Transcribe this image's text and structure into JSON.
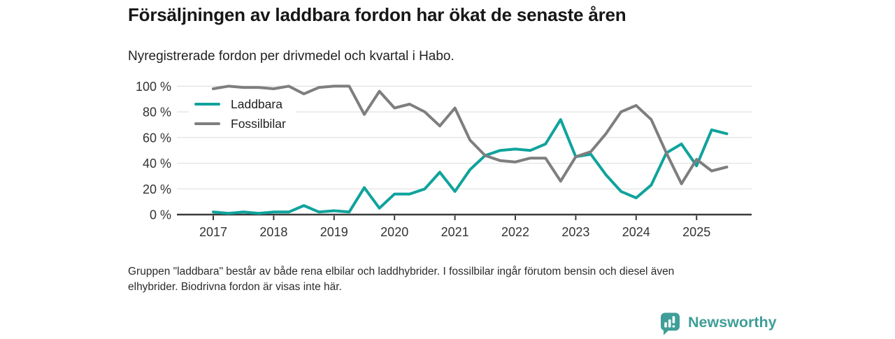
{
  "header": {
    "title": "Försäljningen av laddbara fordon har ökat de senaste åren",
    "subtitle": "Nyregistrerade fordon per drivmedel och kvartal i Habo."
  },
  "chart_data": {
    "type": "line",
    "x_frequency": "quarterly",
    "x_tick_labels": [
      "2017",
      "2018",
      "2019",
      "2020",
      "2021",
      "2022",
      "2023",
      "2024",
      "2025"
    ],
    "y_tick_labels": [
      "0 %",
      "20 %",
      "40 %",
      "60 %",
      "80 %",
      "100 %"
    ],
    "ylim": [
      0,
      100
    ],
    "grid": true,
    "legend_position": "top-left-inside",
    "series": [
      {
        "name": "Laddbara",
        "color": "#0fa39c",
        "values": [
          2,
          1,
          2,
          1,
          2,
          2,
          7,
          2,
          3,
          2,
          21,
          5,
          16,
          16,
          20,
          33,
          18,
          35,
          46,
          50,
          51,
          50,
          55,
          74,
          45,
          47,
          31,
          18,
          13,
          23,
          48,
          55,
          38,
          66,
          63
        ]
      },
      {
        "name": "Fossilbilar",
        "color": "#7e7e7e",
        "values": [
          98,
          100,
          99,
          99,
          98,
          100,
          94,
          99,
          100,
          100,
          78,
          96,
          83,
          86,
          80,
          69,
          83,
          58,
          46,
          42,
          41,
          44,
          44,
          26,
          45,
          49,
          63,
          80,
          85,
          74,
          48,
          24,
          43,
          34,
          37
        ]
      }
    ]
  },
  "footnote": {
    "line1": "Gruppen \"laddbara\" består av både rena elbilar och laddhybrider. I fossilbilar ingår förutom bensin och diesel även",
    "line2": "elhybrider. Biodrivna fordon är visas inte här."
  },
  "branding": {
    "logo_text": "Newsworthy",
    "brand_color": "#3f9e98",
    "logo_icon": "bar-chart-speech-bubble-icon"
  },
  "colors": {
    "axis": "#3a3a3a",
    "gridline": "#e3e3e3",
    "tick_label": "#333333"
  }
}
